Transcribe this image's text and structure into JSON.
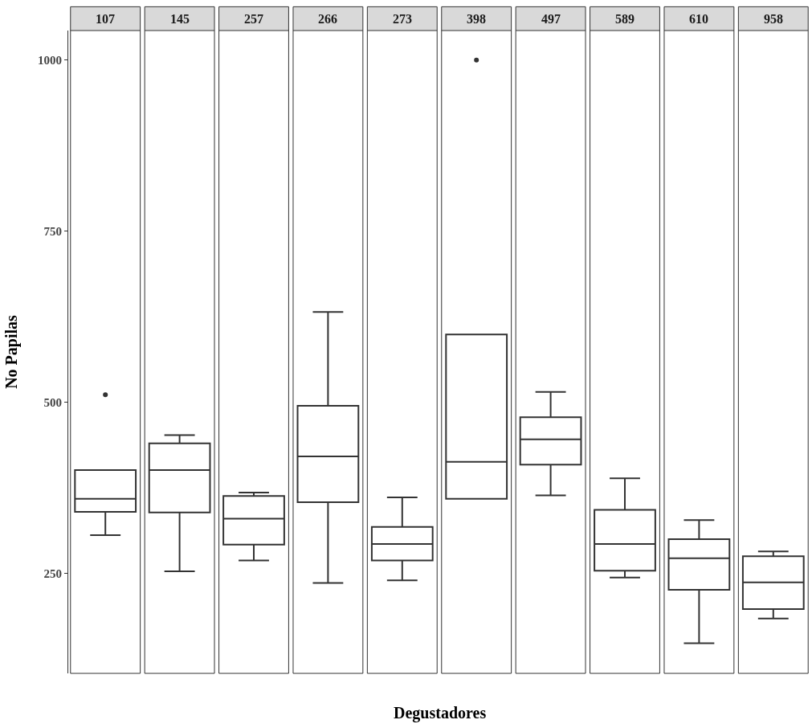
{
  "chart_data": {
    "type": "box",
    "xlabel": "Degustadores",
    "ylabel": "No Papilas",
    "categories": [
      "107",
      "145",
      "257",
      "266",
      "273",
      "398",
      "497",
      "589",
      "610",
      "958"
    ],
    "boxes": [
      {
        "low": 306,
        "q1": 340,
        "median": 359,
        "q3": 401,
        "high": 401,
        "outliers": [
          511
        ]
      },
      {
        "low": 253,
        "q1": 339,
        "median": 401,
        "q3": 440,
        "high": 452
      },
      {
        "low": 269,
        "q1": 292,
        "median": 330,
        "q3": 363,
        "high": 368
      },
      {
        "low": 236,
        "q1": 354,
        "median": 421,
        "q3": 495,
        "high": 632
      },
      {
        "low": 240,
        "q1": 269,
        "median": 293,
        "q3": 318,
        "high": 361
      },
      {
        "low": 359,
        "q1": 359,
        "median": 413,
        "q3": 599,
        "high": 599,
        "outliers": [
          1000
        ]
      },
      {
        "low": 364,
        "q1": 409,
        "median": 446,
        "q3": 478,
        "high": 515
      },
      {
        "low": 244,
        "q1": 254,
        "median": 293,
        "q3": 343,
        "high": 389
      },
      {
        "low": 148,
        "q1": 226,
        "median": 272,
        "q3": 300,
        "high": 328
      },
      {
        "low": 184,
        "q1": 198,
        "median": 237,
        "q3": 275,
        "high": 282
      }
    ],
    "color": "#333333",
    "ylim": [
      104,
      1043
    ],
    "yticks": [
      250,
      500,
      750,
      1000
    ],
    "grid": false
  }
}
